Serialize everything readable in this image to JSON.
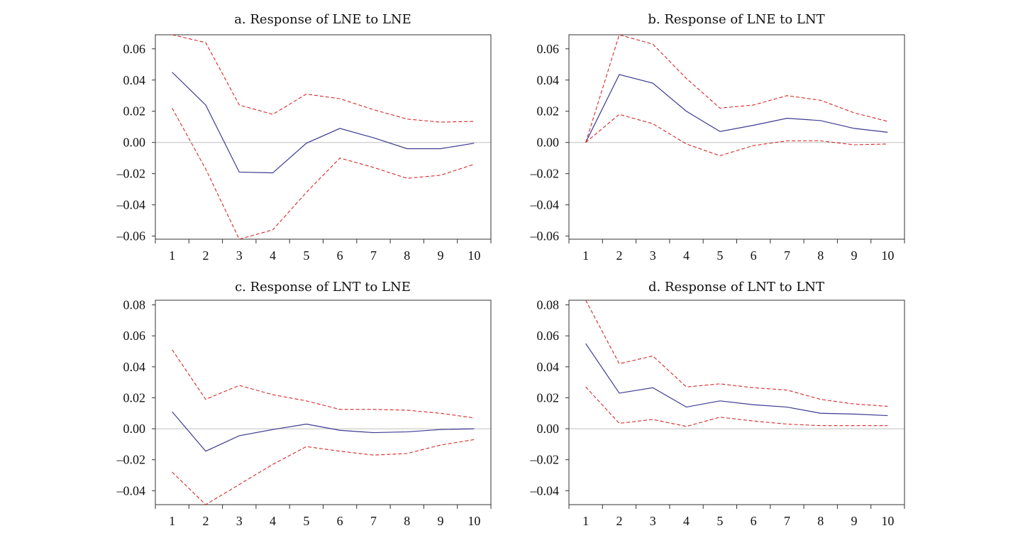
{
  "colors": {
    "response": "#3b3b8f",
    "bands": "#d62828",
    "zero_line": "#bfbfbf",
    "axes": "#333333"
  },
  "chart_data": [
    {
      "type": "line",
      "title": "a. Response of LNE to LNE",
      "x": [
        1,
        2,
        3,
        4,
        5,
        6,
        7,
        8,
        9,
        10
      ],
      "xlim": [
        0.5,
        10.5
      ],
      "ylim": [
        -0.062,
        0.069
      ],
      "yticks": [
        0.06,
        0.04,
        0.02,
        0.0,
        -0.02,
        -0.04,
        -0.06
      ],
      "ytick_labels": [
        "0.06",
        "0.04",
        "0.02",
        "0.00",
        "–0.02",
        "–0.04",
        "–0.06"
      ],
      "series": [
        {
          "role": "response",
          "style": "solid",
          "values": [
            0.045,
            0.024,
            -0.019,
            -0.0195,
            -0.0005,
            0.009,
            0.003,
            -0.004,
            -0.004,
            -0.0005
          ]
        },
        {
          "role": "upper",
          "style": "dashed",
          "values": [
            0.069,
            0.064,
            0.024,
            0.018,
            0.031,
            0.028,
            0.021,
            0.015,
            0.013,
            0.0135
          ]
        },
        {
          "role": "lower",
          "style": "dashed",
          "values": [
            0.022,
            -0.017,
            -0.062,
            -0.056,
            -0.032,
            -0.01,
            -0.016,
            -0.023,
            -0.021,
            -0.014
          ]
        }
      ]
    },
    {
      "type": "line",
      "title": "b. Response of LNE to LNT",
      "x": [
        1,
        2,
        3,
        4,
        5,
        6,
        7,
        8,
        9,
        10
      ],
      "xlim": [
        0.5,
        10.5
      ],
      "ylim": [
        -0.062,
        0.069
      ],
      "yticks": [
        0.06,
        0.04,
        0.02,
        0.0,
        -0.02,
        -0.04,
        -0.06
      ],
      "ytick_labels": [
        "0.06",
        "0.04",
        "0.02",
        "0.00",
        "–0.02",
        "–0.04",
        "–0.06"
      ],
      "series": [
        {
          "role": "response",
          "style": "solid",
          "values": [
            0.0,
            0.0435,
            0.038,
            0.02,
            0.007,
            0.011,
            0.0155,
            0.014,
            0.009,
            0.0065
          ]
        },
        {
          "role": "upper",
          "style": "dashed",
          "values": [
            0.0,
            0.069,
            0.063,
            0.041,
            0.022,
            0.024,
            0.03,
            0.027,
            0.019,
            0.0135
          ]
        },
        {
          "role": "lower",
          "style": "dashed",
          "values": [
            0.0,
            0.018,
            0.012,
            -0.001,
            -0.0085,
            -0.002,
            0.001,
            0.001,
            -0.0015,
            -0.001
          ]
        }
      ]
    },
    {
      "type": "line",
      "title": "c. Response of LNT to LNE",
      "x": [
        1,
        2,
        3,
        4,
        5,
        6,
        7,
        8,
        9,
        10
      ],
      "xlim": [
        0.5,
        10.5
      ],
      "ylim": [
        -0.049,
        0.083
      ],
      "yticks": [
        0.08,
        0.06,
        0.04,
        0.02,
        0.0,
        -0.02,
        -0.04
      ],
      "ytick_labels": [
        "0.08",
        "0.06",
        "0.04",
        "0.02",
        "0.00",
        "–0.02",
        "–0.04"
      ],
      "series": [
        {
          "role": "response",
          "style": "solid",
          "values": [
            0.011,
            -0.0145,
            -0.0045,
            -0.0005,
            0.003,
            -0.001,
            -0.0025,
            -0.002,
            -0.0005,
            0.0
          ]
        },
        {
          "role": "upper",
          "style": "dashed",
          "values": [
            0.051,
            0.019,
            0.028,
            0.022,
            0.018,
            0.0125,
            0.0125,
            0.012,
            0.01,
            0.007
          ]
        },
        {
          "role": "lower",
          "style": "dashed",
          "values": [
            -0.028,
            -0.049,
            -0.036,
            -0.023,
            -0.0115,
            -0.0145,
            -0.017,
            -0.016,
            -0.0105,
            -0.007
          ]
        }
      ]
    },
    {
      "type": "line",
      "title": "d. Response of LNT to LNT",
      "x": [
        1,
        2,
        3,
        4,
        5,
        6,
        7,
        8,
        9,
        10
      ],
      "xlim": [
        0.5,
        10.5
      ],
      "ylim": [
        -0.049,
        0.083
      ],
      "yticks": [
        0.08,
        0.06,
        0.04,
        0.02,
        0.0,
        -0.02,
        -0.04
      ],
      "ytick_labels": [
        "0.08",
        "0.06",
        "0.04",
        "0.02",
        "0.00",
        "–0.02",
        "–0.04"
      ],
      "series": [
        {
          "role": "response",
          "style": "solid",
          "values": [
            0.055,
            0.023,
            0.0265,
            0.014,
            0.018,
            0.0155,
            0.014,
            0.01,
            0.0095,
            0.0085
          ]
        },
        {
          "role": "upper",
          "style": "dashed",
          "values": [
            0.083,
            0.042,
            0.047,
            0.027,
            0.029,
            0.0265,
            0.025,
            0.019,
            0.016,
            0.0145
          ]
        },
        {
          "role": "lower",
          "style": "dashed",
          "values": [
            0.027,
            0.0035,
            0.006,
            0.0015,
            0.0075,
            0.005,
            0.003,
            0.002,
            0.002,
            0.002
          ]
        }
      ]
    }
  ]
}
